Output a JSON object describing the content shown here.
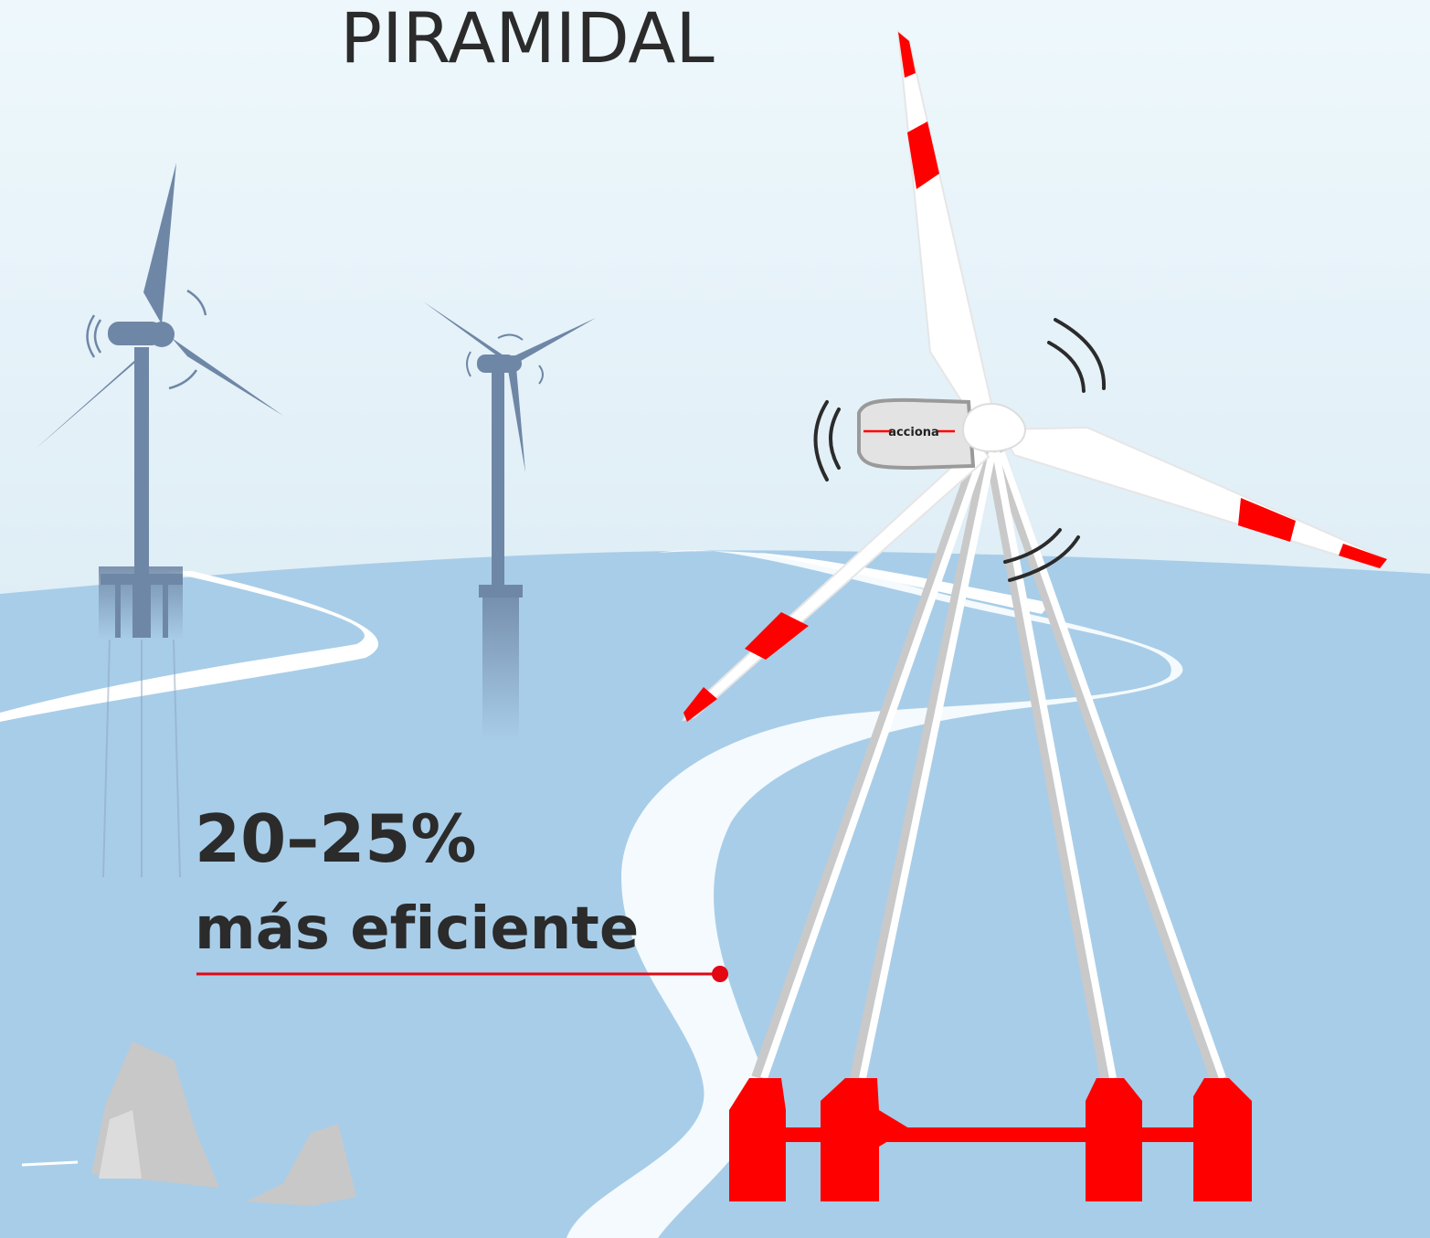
{
  "title": "PIRAMIDAL",
  "stat": {
    "value": "20–25%",
    "label": "más eficiente"
  },
  "logo": "acciona"
}
